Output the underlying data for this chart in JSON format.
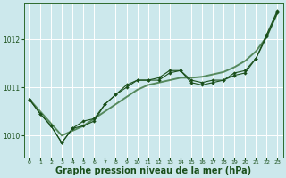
{
  "bg_color": "#cce8ec",
  "grid_color": "#ffffff",
  "line_color_dark": "#1a4f1a",
  "line_color_mid": "#2d6a2d",
  "xlabel": "Graphe pression niveau de la mer (hPa)",
  "xlabel_fontsize": 7.0,
  "xlim": [
    -0.5,
    23.5
  ],
  "ylim": [
    1009.55,
    1012.75
  ],
  "yticks": [
    1010,
    1011,
    1012
  ],
  "xticks": [
    0,
    1,
    2,
    3,
    4,
    5,
    6,
    7,
    8,
    9,
    10,
    11,
    12,
    13,
    14,
    15,
    16,
    17,
    18,
    19,
    20,
    21,
    22,
    23
  ],
  "smooth_x": [
    0,
    1,
    2,
    3,
    4,
    5,
    6,
    7,
    8,
    9,
    10,
    11,
    12,
    13,
    14,
    15,
    16,
    17,
    18,
    19,
    20,
    21,
    22,
    23
  ],
  "smooth_y": [
    1010.75,
    1010.5,
    1010.25,
    1010.0,
    1010.1,
    1010.2,
    1010.35,
    1010.5,
    1010.65,
    1010.8,
    1010.95,
    1011.05,
    1011.1,
    1011.15,
    1011.2,
    1011.2,
    1011.22,
    1011.27,
    1011.32,
    1011.42,
    1011.55,
    1011.75,
    1012.05,
    1012.55
  ],
  "jagged1_x": [
    0,
    1,
    2,
    3,
    4,
    5,
    6,
    7,
    8,
    9,
    10,
    11,
    12,
    13,
    14,
    15,
    16,
    17,
    18,
    19,
    20,
    21,
    22,
    23
  ],
  "jagged1_y": [
    1010.75,
    1010.45,
    1010.2,
    1009.85,
    1010.15,
    1010.2,
    1010.3,
    1010.65,
    1010.85,
    1011.05,
    1011.15,
    1011.15,
    1011.15,
    1011.3,
    1011.35,
    1011.1,
    1011.05,
    1011.1,
    1011.15,
    1011.25,
    1011.3,
    1011.6,
    1012.05,
    1012.55
  ],
  "jagged2_x": [
    0,
    1,
    2,
    3,
    4,
    5,
    6,
    7,
    8,
    9,
    10,
    11,
    12,
    13,
    14,
    15,
    16,
    17,
    18,
    19,
    20,
    21,
    22,
    23
  ],
  "jagged2_y": [
    1010.75,
    1010.45,
    1010.2,
    1009.85,
    1010.15,
    1010.3,
    1010.35,
    1010.65,
    1010.85,
    1011.0,
    1011.15,
    1011.15,
    1011.2,
    1011.35,
    1011.35,
    1011.15,
    1011.1,
    1011.15,
    1011.15,
    1011.3,
    1011.35,
    1011.6,
    1012.1,
    1012.6
  ]
}
